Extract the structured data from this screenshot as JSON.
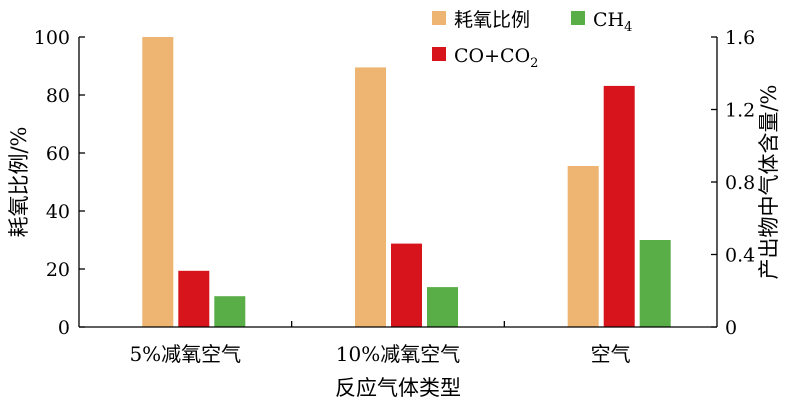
{
  "chart_data": {
    "type": "bar",
    "title": "",
    "xlabel": "反应气体类型",
    "ylabel_left": "耗氧比例/%",
    "ylabel_right": "产出物中气体含量/%",
    "categories": [
      "5%减氧空气",
      "10%减氧空气",
      "空气"
    ],
    "ylim_left": [
      0,
      100
    ],
    "yticks_left": [
      "0",
      "20",
      "40",
      "60",
      "80",
      "100"
    ],
    "ylim_right": [
      0,
      1.6
    ],
    "yticks_right": [
      "0",
      "0.4",
      "0.8",
      "1.2",
      "1.6"
    ],
    "grid": false,
    "legend_position": "top-center",
    "series": [
      {
        "name": "耗氧比例",
        "axis": "left",
        "color": "#EDB571",
        "values": [
          100,
          89.5,
          55.5
        ]
      },
      {
        "name": "CO+CO2",
        "axis": "right",
        "color": "#D7141C",
        "values": [
          0.31,
          0.46,
          1.33
        ]
      },
      {
        "name": "CH4",
        "axis": "right",
        "color": "#5AAE48",
        "values": [
          0.17,
          0.22,
          0.48
        ]
      }
    ],
    "legend": [
      {
        "series": 0,
        "label": {
          "text": "耗氧比例"
        }
      },
      {
        "series": 2,
        "label": {
          "text": "CH",
          "sub": "4"
        }
      },
      {
        "series": 1,
        "label": {
          "text": "CO+CO",
          "sub": "2"
        }
      }
    ]
  }
}
